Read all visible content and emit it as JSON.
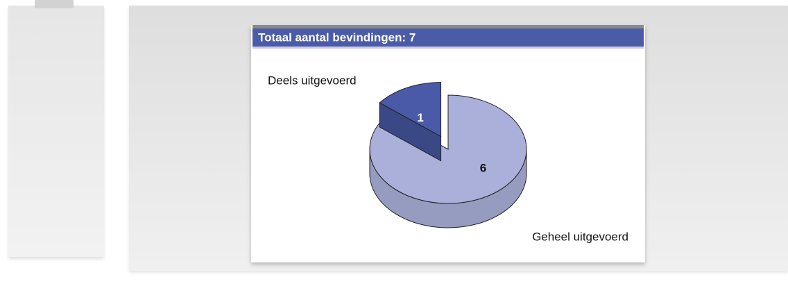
{
  "chart_data": {
    "type": "pie",
    "title": "Totaal aantal bevindingen: 7",
    "categories": [
      "Geheel uitgevoerd",
      "Deels uitgevoerd"
    ],
    "values": [
      6,
      1
    ],
    "colors": [
      "#aab0da",
      "#4a5aa8"
    ]
  }
}
